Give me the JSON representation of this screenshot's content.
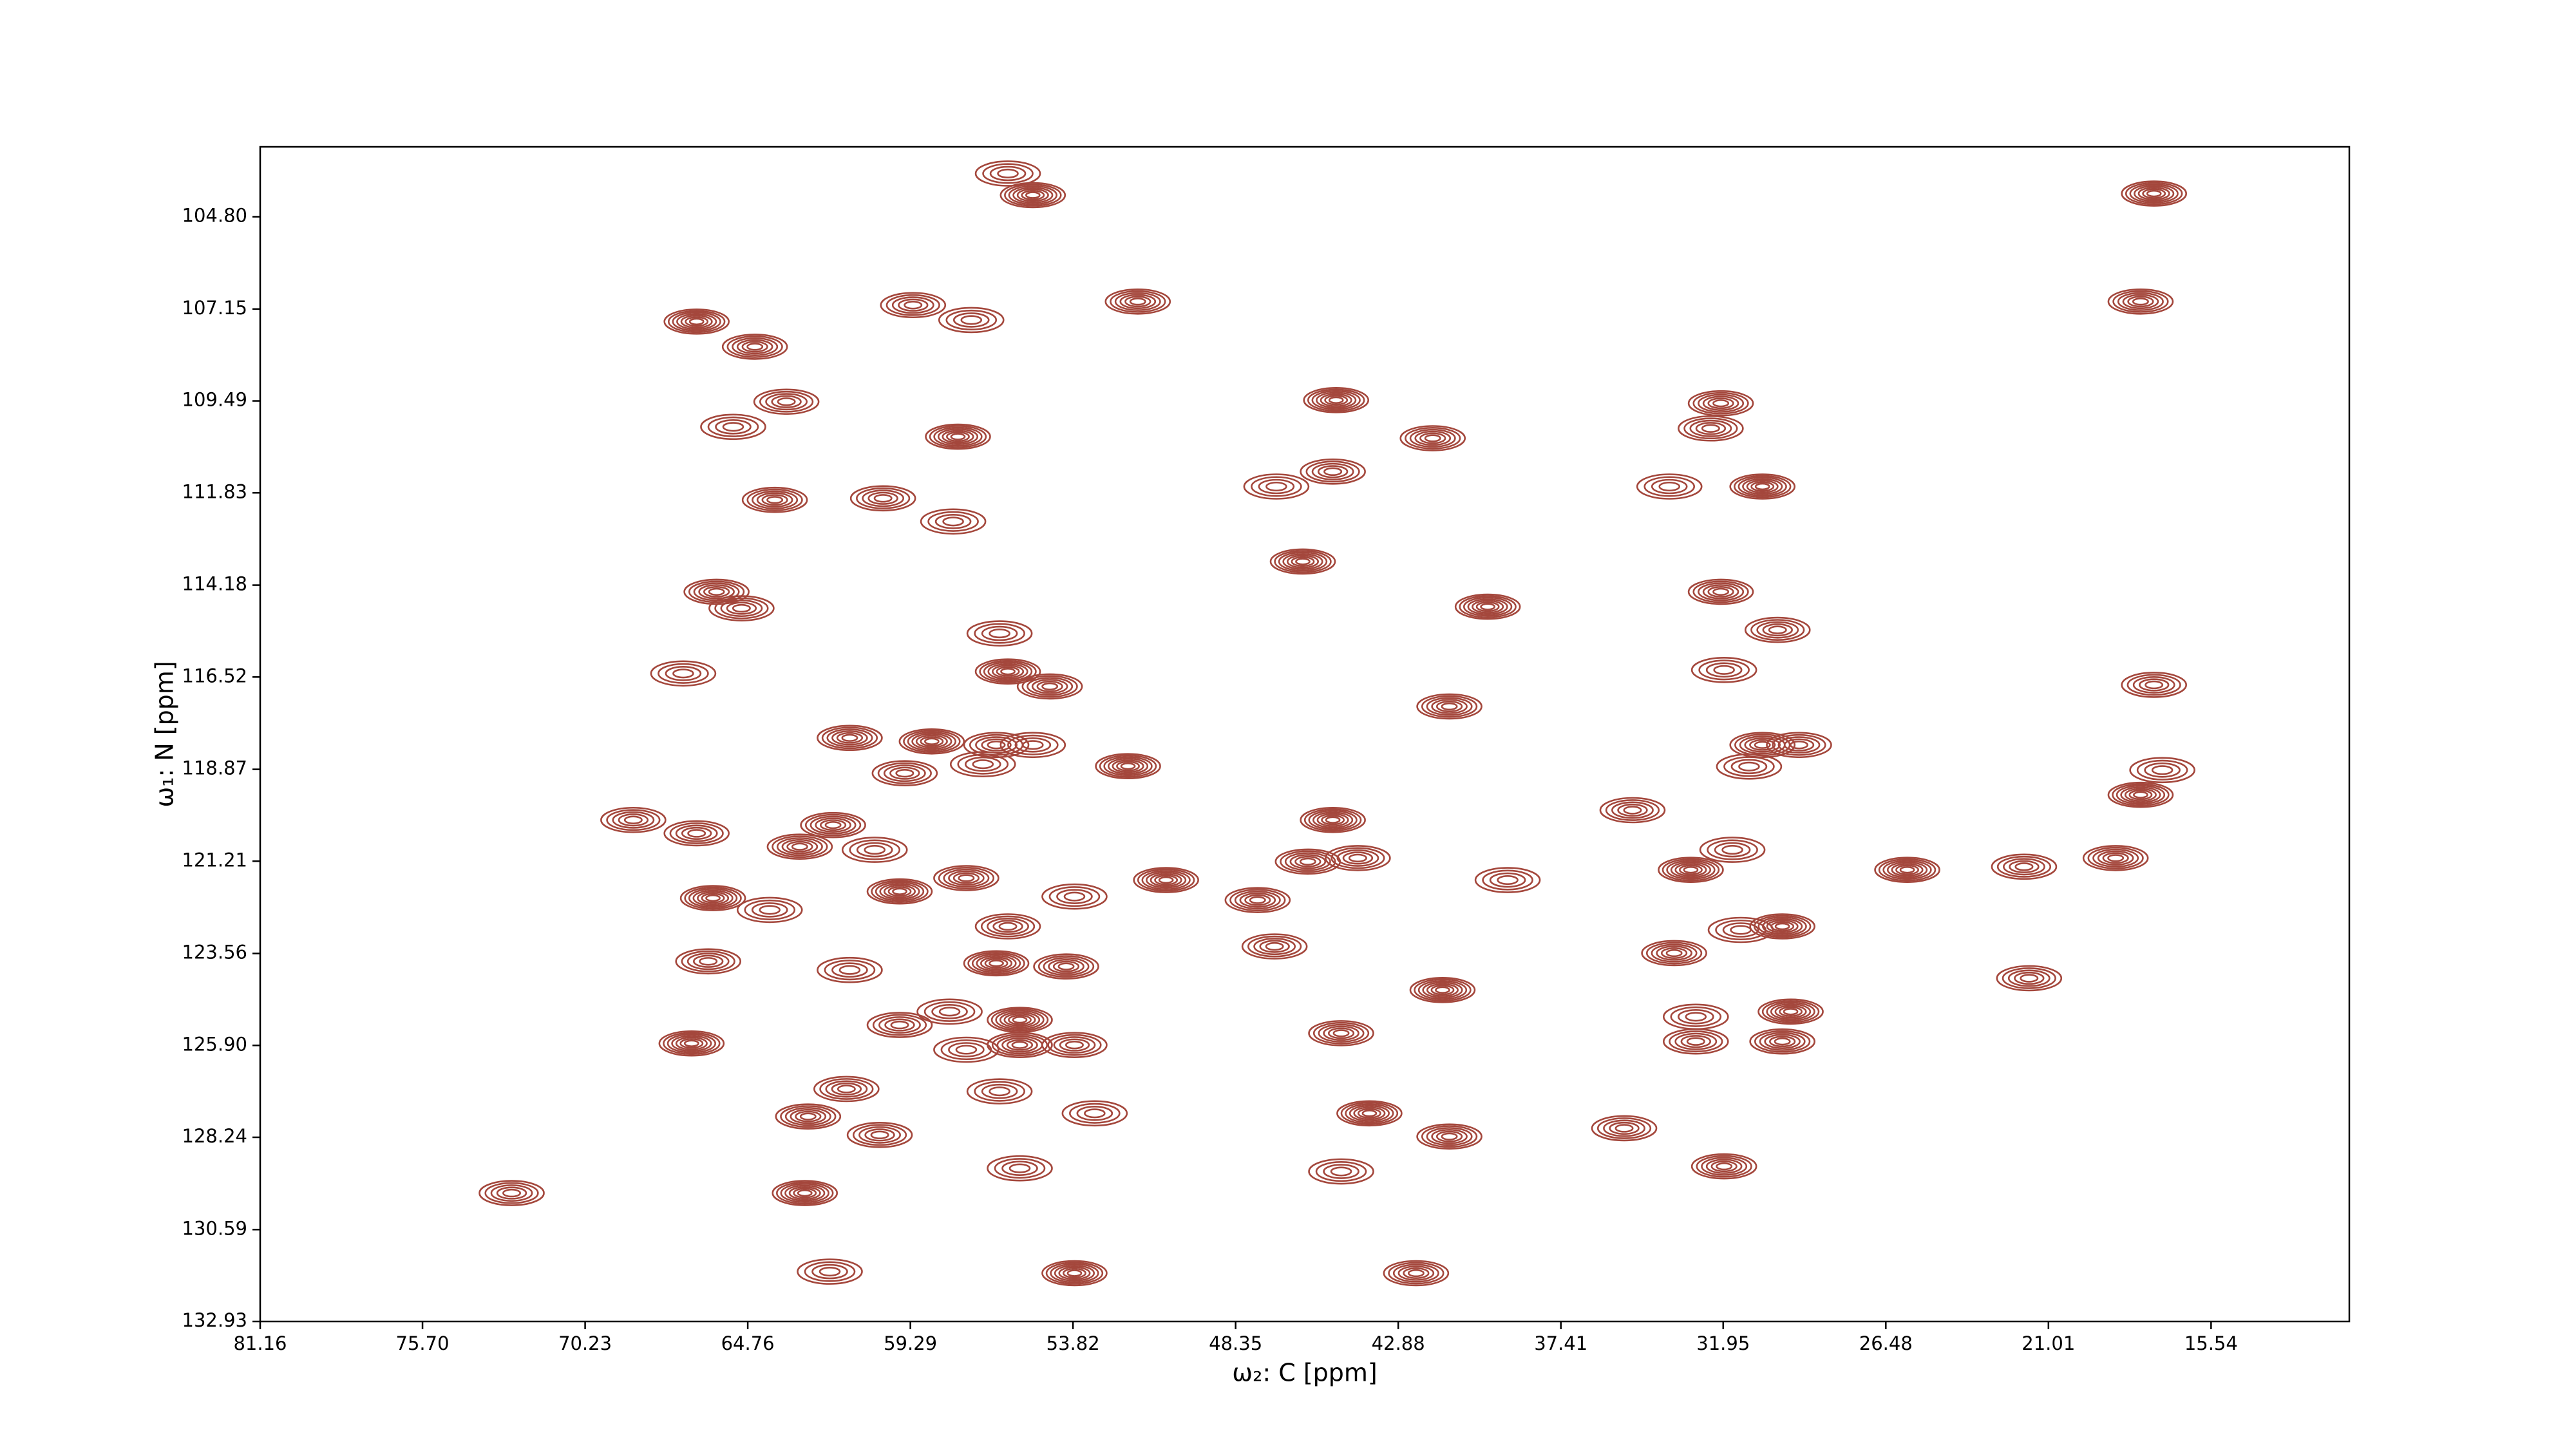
{
  "chart_data": {
    "type": "contour",
    "xlabel": "ω₂: C [ppm]",
    "ylabel": "ω₁: N [ppm]",
    "color": "#a4473c",
    "xlim": [
      81.16,
      10.89
    ],
    "ylim": [
      132.93,
      103.02
    ],
    "xticks": [
      81.16,
      {
        "value": 75.7,
        "label": "75.70"
      },
      70.23,
      64.76,
      59.29,
      53.82,
      48.35,
      42.88,
      37.41,
      31.95,
      26.48,
      21.01,
      15.54
    ],
    "yticks": [
      {
        "value": 104.8,
        "label": "104.80"
      },
      107.15,
      109.49,
      111.83,
      114.18,
      116.52,
      118.87,
      121.21,
      123.56,
      {
        "value": 125.9,
        "label": "125.90"
      },
      128.24,
      130.59,
      132.93
    ],
    "x": [
      56.01,
      55.17,
      51.64,
      59.2,
      57.24,
      66.48,
      64.52,
      63.46,
      65.25,
      57.69,
      63.85,
      60.21,
      57.85,
      44.97,
      41.72,
      45.08,
      46.98,
      46.09,
      32.03,
      32.37,
      33.76,
      30.63,
      65.81,
      64.97,
      66.93,
      39.87,
      32.03,
      30.12,
      31.92,
      17.46,
      17.91,
      17.46,
      17.18,
      17.91,
      18.75,
      21.83,
      56.29,
      56.01,
      54.6,
      56.4,
      55.17,
      58.57,
      61.33,
      59.48,
      56.85,
      51.97,
      41.16,
      35.0,
      39.2,
      45.08,
      45.92,
      44.24,
      31.64,
      33.04,
      30.63,
      29.4,
      31.08,
      25.76,
      63.01,
      66.48,
      64.02,
      65.93,
      61.89,
      68.61,
      60.49,
      59.65,
      57.41,
      56.01,
      53.77,
      50.69,
      47.61,
      66.09,
      61.33,
      56.4,
      54.05,
      47.04,
      31.36,
      29.96,
      33.6,
      59.65,
      57.97,
      55.61,
      55.61,
      53.77,
      57.41,
      41.39,
      44.8,
      32.87,
      32.87,
      29.68,
      29.96,
      61.44,
      56.29,
      66.65,
      62.73,
      60.32,
      53.09,
      43.85,
      41.16,
      35.28,
      55.61,
      62.84,
      31.92,
      72.7,
      62.0,
      53.77,
      42.28,
      21.66,
      44.8
    ],
    "y": [
      103.7,
      104.25,
      106.96,
      107.05,
      107.43,
      107.47,
      108.11,
      109.51,
      110.15,
      110.4,
      112.01,
      111.97,
      112.56,
      109.47,
      110.44,
      111.29,
      111.67,
      113.58,
      109.55,
      110.19,
      111.67,
      111.67,
      114.35,
      114.77,
      116.43,
      114.73,
      114.35,
      115.32,
      116.34,
      104.21,
      106.96,
      116.72,
      118.89,
      119.52,
      121.13,
      121.35,
      115.41,
      116.38,
      116.76,
      118.25,
      118.25,
      118.16,
      118.07,
      118.97,
      118.74,
      118.79,
      117.27,
      119.91,
      121.69,
      120.16,
      121.22,
      121.13,
      120.92,
      121.43,
      118.25,
      118.25,
      118.8,
      121.43,
      120.84,
      120.5,
      122.45,
      122.15,
      120.29,
      120.16,
      120.92,
      121.98,
      121.64,
      122.87,
      122.11,
      121.69,
      122.2,
      123.76,
      123.98,
      123.81,
      123.89,
      123.38,
      122.96,
      122.87,
      123.55,
      125.38,
      125.04,
      125.25,
      125.89,
      125.89,
      126.01,
      124.49,
      125.59,
      125.8,
      125.17,
      125.04,
      125.8,
      127.01,
      127.07,
      125.85,
      127.71,
      128.18,
      127.63,
      127.63,
      128.22,
      128.01,
      129.03,
      129.66,
      128.98,
      129.66,
      131.66,
      131.7,
      131.7,
      124.19,
      129.11
    ]
  }
}
